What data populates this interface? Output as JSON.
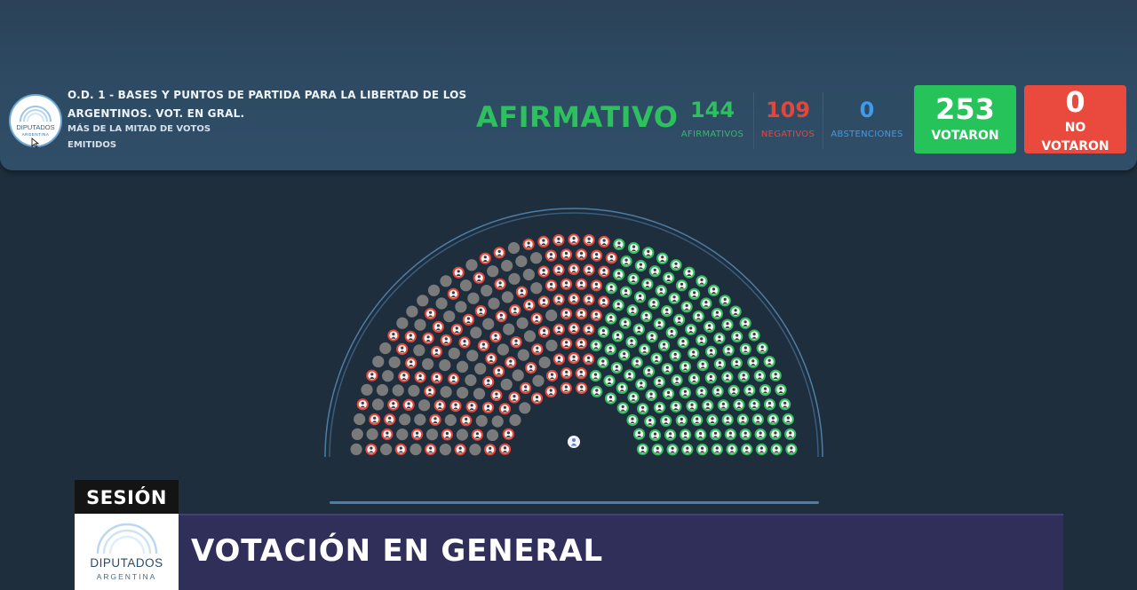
{
  "logo": {
    "name": "diputados-argentina-logo",
    "line1": "DIPUTADOS",
    "line2": "ARGENTINA"
  },
  "header": {
    "title": "O.D. 1 - BASES Y PUNTOS DE PARTIDA PARA LA LIBERTAD DE LOS ARGENTINOS. VOT. EN GRAL.",
    "majority": "MÁS DE LA MITAD DE VOTOS EMITIDOS",
    "result": "AFIRMATIVO"
  },
  "stats": {
    "afirmativos": {
      "value": "144",
      "label": "AFIRMATIVOS",
      "color": "#2ebf5e"
    },
    "negativos": {
      "value": "109",
      "label": "NEGATIVOS",
      "color": "#e8453a"
    },
    "abstenciones": {
      "value": "0",
      "label": "ABSTENCIONES",
      "color": "#3d9be9"
    }
  },
  "votaron": {
    "value": "253",
    "label": "VOTARON",
    "color": "#26c35b"
  },
  "no_votaron": {
    "value": "0",
    "label": "NO VOTARON",
    "color": "#ea4a3d"
  },
  "hemicycle": {
    "seat_colors": {
      "afirmativo": "#2ebf5e",
      "negativo": "#e8453a",
      "ausente": "#7a7a7a",
      "presidencia": "#5a7dd6"
    },
    "president_seat": "presidencia"
  },
  "lower_third": {
    "tag": "SESIÓN",
    "logo_line1": "DIPUTADOS",
    "logo_line2": "ARGENTINA",
    "title": "VOTACIÓN EN GENERAL"
  }
}
